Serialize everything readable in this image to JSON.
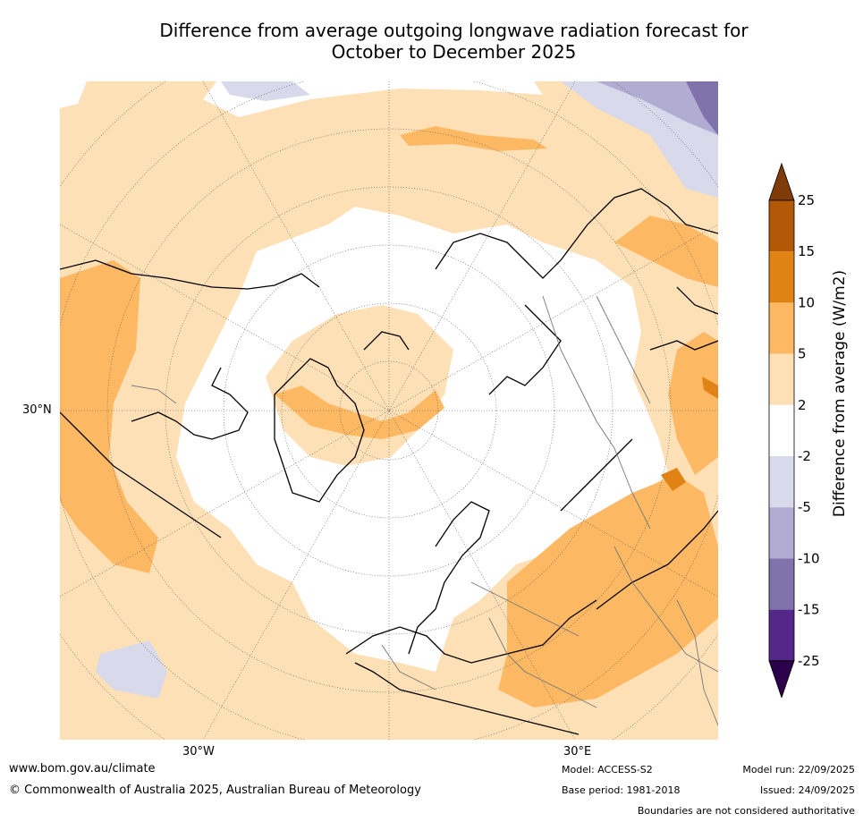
{
  "title": {
    "line1": "Difference from average outgoing longwave radiation forecast for",
    "line2": "October to December 2025"
  },
  "map": {
    "lat_label": "30°N",
    "lon_labels": [
      "30°W",
      "30°E"
    ]
  },
  "colorbar": {
    "label": "Difference from average (W/m2)",
    "ticks": [
      "25",
      "15",
      "10",
      "5",
      "2",
      "-2",
      "-5",
      "-10",
      "-15",
      "-25"
    ],
    "colors": [
      "#7f3b08",
      "#b35806",
      "#e08214",
      "#fdb863",
      "#fee0b6",
      "#ffffff",
      "#d8daeb",
      "#b2abd2",
      "#8073ac",
      "#542788",
      "#2d004b"
    ]
  },
  "footer": {
    "website": "www.bom.gov.au/climate",
    "copyright": "© Commonwealth of Australia 2025, Australian Bureau of Meteorology",
    "model": "Model: ACCESS-S2",
    "base_period": "Base period: 1981-2018",
    "model_run": "Model run: 22/09/2025",
    "issued": "Issued: 24/09/2025",
    "disclaimer": "Boundaries are not considered authoritative"
  }
}
